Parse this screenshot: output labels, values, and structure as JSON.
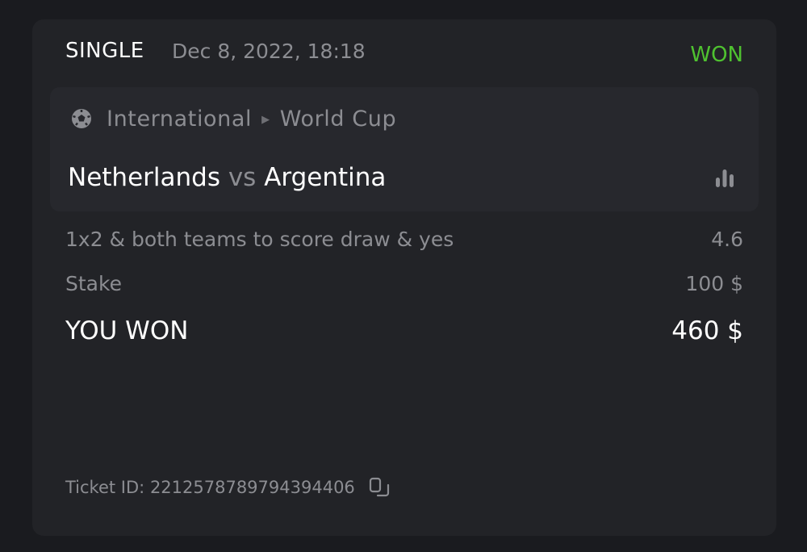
{
  "bet": {
    "type": "SINGLE",
    "date": "Dec 8, 2022, 18:18",
    "status": "WON",
    "status_color": "#4fc230"
  },
  "event": {
    "sport_icon": "soccer-ball-icon",
    "category": "International",
    "league": "World Cup",
    "home": "Netherlands",
    "vs": "vs",
    "away": "Argentina",
    "stats_icon": "bar-chart-icon"
  },
  "selection": {
    "market": "1x2 & both teams to score draw & yes",
    "odds": "4.6"
  },
  "stake": {
    "label": "Stake",
    "value": "100 $"
  },
  "result": {
    "label": "YOU WON",
    "value": "460 $"
  },
  "ticket": {
    "label": "Ticket ID:",
    "id": "2212578789794394406",
    "copy_icon": "copy-icon"
  }
}
